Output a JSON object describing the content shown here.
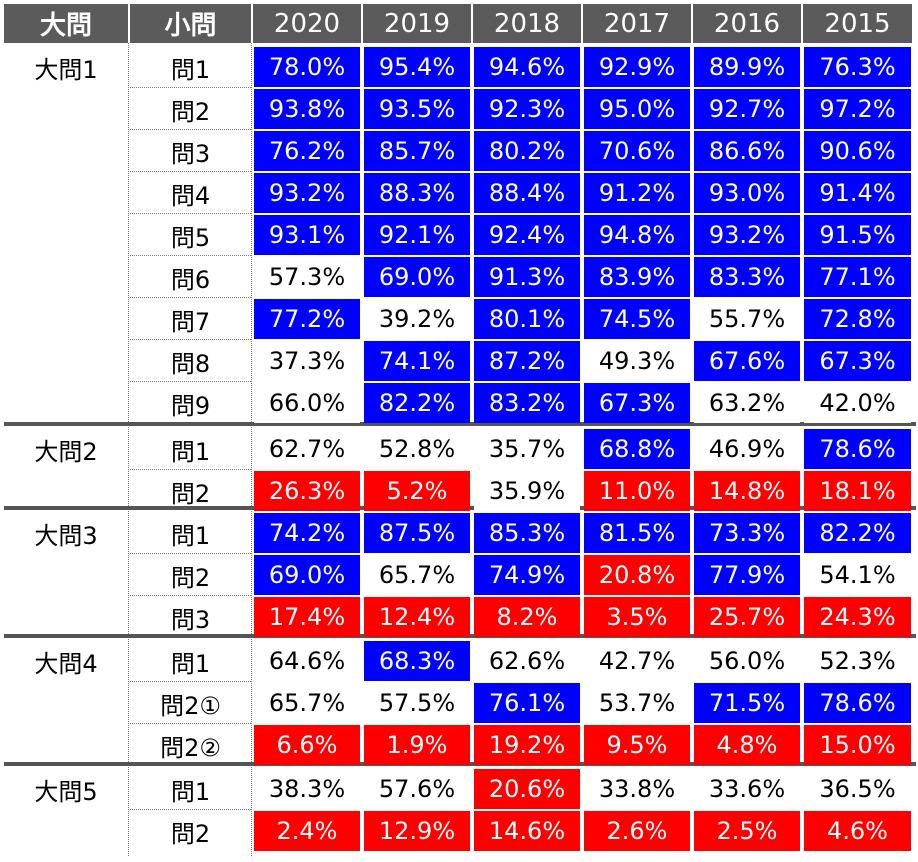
{
  "headers": {
    "dai_label": "大問",
    "sho_label": "小問",
    "years": [
      "2020",
      "2019",
      "2018",
      "2017",
      "2016",
      "2015"
    ]
  },
  "groups": [
    {
      "label": "大問1",
      "rows": [
        {
          "label": "問1",
          "cells": [
            {
              "value": "78.0%",
              "fill": "blue"
            },
            {
              "value": "95.4%",
              "fill": "blue"
            },
            {
              "value": "94.6%",
              "fill": "blue"
            },
            {
              "value": "92.9%",
              "fill": "blue"
            },
            {
              "value": "89.9%",
              "fill": "blue"
            },
            {
              "value": "76.3%",
              "fill": "blue"
            }
          ]
        },
        {
          "label": "問2",
          "cells": [
            {
              "value": "93.8%",
              "fill": "blue"
            },
            {
              "value": "93.5%",
              "fill": "blue"
            },
            {
              "value": "92.3%",
              "fill": "blue"
            },
            {
              "value": "95.0%",
              "fill": "blue"
            },
            {
              "value": "92.7%",
              "fill": "blue"
            },
            {
              "value": "97.2%",
              "fill": "blue"
            }
          ]
        },
        {
          "label": "問3",
          "cells": [
            {
              "value": "76.2%",
              "fill": "blue"
            },
            {
              "value": "85.7%",
              "fill": "blue"
            },
            {
              "value": "80.2%",
              "fill": "blue"
            },
            {
              "value": "70.6%",
              "fill": "blue"
            },
            {
              "value": "86.6%",
              "fill": "blue"
            },
            {
              "value": "90.6%",
              "fill": "blue"
            }
          ]
        },
        {
          "label": "問4",
          "cells": [
            {
              "value": "93.2%",
              "fill": "blue"
            },
            {
              "value": "88.3%",
              "fill": "blue"
            },
            {
              "value": "88.4%",
              "fill": "blue"
            },
            {
              "value": "91.2%",
              "fill": "blue"
            },
            {
              "value": "93.0%",
              "fill": "blue"
            },
            {
              "value": "91.4%",
              "fill": "blue"
            }
          ]
        },
        {
          "label": "問5",
          "cells": [
            {
              "value": "93.1%",
              "fill": "blue"
            },
            {
              "value": "92.1%",
              "fill": "blue"
            },
            {
              "value": "92.4%",
              "fill": "blue"
            },
            {
              "value": "94.8%",
              "fill": "blue"
            },
            {
              "value": "93.2%",
              "fill": "blue"
            },
            {
              "value": "91.5%",
              "fill": "blue"
            }
          ]
        },
        {
          "label": "問6",
          "cells": [
            {
              "value": "57.3%",
              "fill": "white"
            },
            {
              "value": "69.0%",
              "fill": "blue"
            },
            {
              "value": "91.3%",
              "fill": "blue"
            },
            {
              "value": "83.9%",
              "fill": "blue"
            },
            {
              "value": "83.3%",
              "fill": "blue"
            },
            {
              "value": "77.1%",
              "fill": "blue"
            }
          ]
        },
        {
          "label": "問7",
          "cells": [
            {
              "value": "77.2%",
              "fill": "blue"
            },
            {
              "value": "39.2%",
              "fill": "white"
            },
            {
              "value": "80.1%",
              "fill": "blue"
            },
            {
              "value": "74.5%",
              "fill": "blue"
            },
            {
              "value": "55.7%",
              "fill": "white"
            },
            {
              "value": "72.8%",
              "fill": "blue"
            }
          ]
        },
        {
          "label": "問8",
          "cells": [
            {
              "value": "37.3%",
              "fill": "white"
            },
            {
              "value": "74.1%",
              "fill": "blue"
            },
            {
              "value": "87.2%",
              "fill": "blue"
            },
            {
              "value": "49.3%",
              "fill": "white"
            },
            {
              "value": "67.6%",
              "fill": "blue"
            },
            {
              "value": "67.3%",
              "fill": "blue"
            }
          ]
        },
        {
          "label": "問9",
          "cells": [
            {
              "value": "66.0%",
              "fill": "white"
            },
            {
              "value": "82.2%",
              "fill": "blue"
            },
            {
              "value": "83.2%",
              "fill": "blue"
            },
            {
              "value": "67.3%",
              "fill": "blue"
            },
            {
              "value": "63.2%",
              "fill": "white"
            },
            {
              "value": "42.0%",
              "fill": "white"
            }
          ]
        }
      ]
    },
    {
      "label": "大問2",
      "rows": [
        {
          "label": "問1",
          "cells": [
            {
              "value": "62.7%",
              "fill": "white"
            },
            {
              "value": "52.8%",
              "fill": "white"
            },
            {
              "value": "35.7%",
              "fill": "white"
            },
            {
              "value": "68.8%",
              "fill": "blue"
            },
            {
              "value": "46.9%",
              "fill": "white"
            },
            {
              "value": "78.6%",
              "fill": "blue"
            }
          ]
        },
        {
          "label": "問2",
          "cells": [
            {
              "value": "26.3%",
              "fill": "red"
            },
            {
              "value": "5.2%",
              "fill": "red"
            },
            {
              "value": "35.9%",
              "fill": "white"
            },
            {
              "value": "11.0%",
              "fill": "red"
            },
            {
              "value": "14.8%",
              "fill": "red"
            },
            {
              "value": "18.1%",
              "fill": "red"
            }
          ]
        }
      ]
    },
    {
      "label": "大問3",
      "rows": [
        {
          "label": "問1",
          "cells": [
            {
              "value": "74.2%",
              "fill": "blue"
            },
            {
              "value": "87.5%",
              "fill": "blue"
            },
            {
              "value": "85.3%",
              "fill": "blue"
            },
            {
              "value": "81.5%",
              "fill": "blue"
            },
            {
              "value": "73.3%",
              "fill": "blue"
            },
            {
              "value": "82.2%",
              "fill": "blue"
            }
          ]
        },
        {
          "label": "問2",
          "cells": [
            {
              "value": "69.0%",
              "fill": "blue"
            },
            {
              "value": "65.7%",
              "fill": "white"
            },
            {
              "value": "74.9%",
              "fill": "blue"
            },
            {
              "value": "20.8%",
              "fill": "red"
            },
            {
              "value": "77.9%",
              "fill": "blue"
            },
            {
              "value": "54.1%",
              "fill": "white"
            }
          ]
        },
        {
          "label": "問3",
          "cells": [
            {
              "value": "17.4%",
              "fill": "red"
            },
            {
              "value": "12.4%",
              "fill": "red"
            },
            {
              "value": "8.2%",
              "fill": "red"
            },
            {
              "value": "3.5%",
              "fill": "red"
            },
            {
              "value": "25.7%",
              "fill": "red"
            },
            {
              "value": "24.3%",
              "fill": "red"
            }
          ]
        }
      ]
    },
    {
      "label": "大問4",
      "rows": [
        {
          "label": "問1",
          "cells": [
            {
              "value": "64.6%",
              "fill": "white"
            },
            {
              "value": "68.3%",
              "fill": "blue"
            },
            {
              "value": "62.6%",
              "fill": "white"
            },
            {
              "value": "42.7%",
              "fill": "white"
            },
            {
              "value": "56.0%",
              "fill": "white"
            },
            {
              "value": "52.3%",
              "fill": "white"
            }
          ]
        },
        {
          "label": "問2①",
          "cells": [
            {
              "value": "65.7%",
              "fill": "white"
            },
            {
              "value": "57.5%",
              "fill": "white"
            },
            {
              "value": "76.1%",
              "fill": "blue"
            },
            {
              "value": "53.7%",
              "fill": "white"
            },
            {
              "value": "71.5%",
              "fill": "blue"
            },
            {
              "value": "78.6%",
              "fill": "blue"
            }
          ]
        },
        {
          "label": "問2②",
          "cells": [
            {
              "value": "6.6%",
              "fill": "red"
            },
            {
              "value": "1.9%",
              "fill": "red"
            },
            {
              "value": "19.2%",
              "fill": "red"
            },
            {
              "value": "9.5%",
              "fill": "red"
            },
            {
              "value": "4.8%",
              "fill": "red"
            },
            {
              "value": "15.0%",
              "fill": "red"
            }
          ]
        }
      ]
    },
    {
      "label": "大問5",
      "rows": [
        {
          "label": "問1",
          "cells": [
            {
              "value": "38.3%",
              "fill": "white"
            },
            {
              "value": "57.6%",
              "fill": "white"
            },
            {
              "value": "20.6%",
              "fill": "red"
            },
            {
              "value": "33.8%",
              "fill": "white"
            },
            {
              "value": "33.6%",
              "fill": "white"
            },
            {
              "value": "36.5%",
              "fill": "white"
            }
          ]
        },
        {
          "label": "問2",
          "cells": [
            {
              "value": "2.4%",
              "fill": "red"
            },
            {
              "value": "12.9%",
              "fill": "red"
            },
            {
              "value": "14.6%",
              "fill": "red"
            },
            {
              "value": "2.6%",
              "fill": "red"
            },
            {
              "value": "2.5%",
              "fill": "red"
            },
            {
              "value": "4.6%",
              "fill": "red"
            }
          ]
        }
      ]
    }
  ]
}
